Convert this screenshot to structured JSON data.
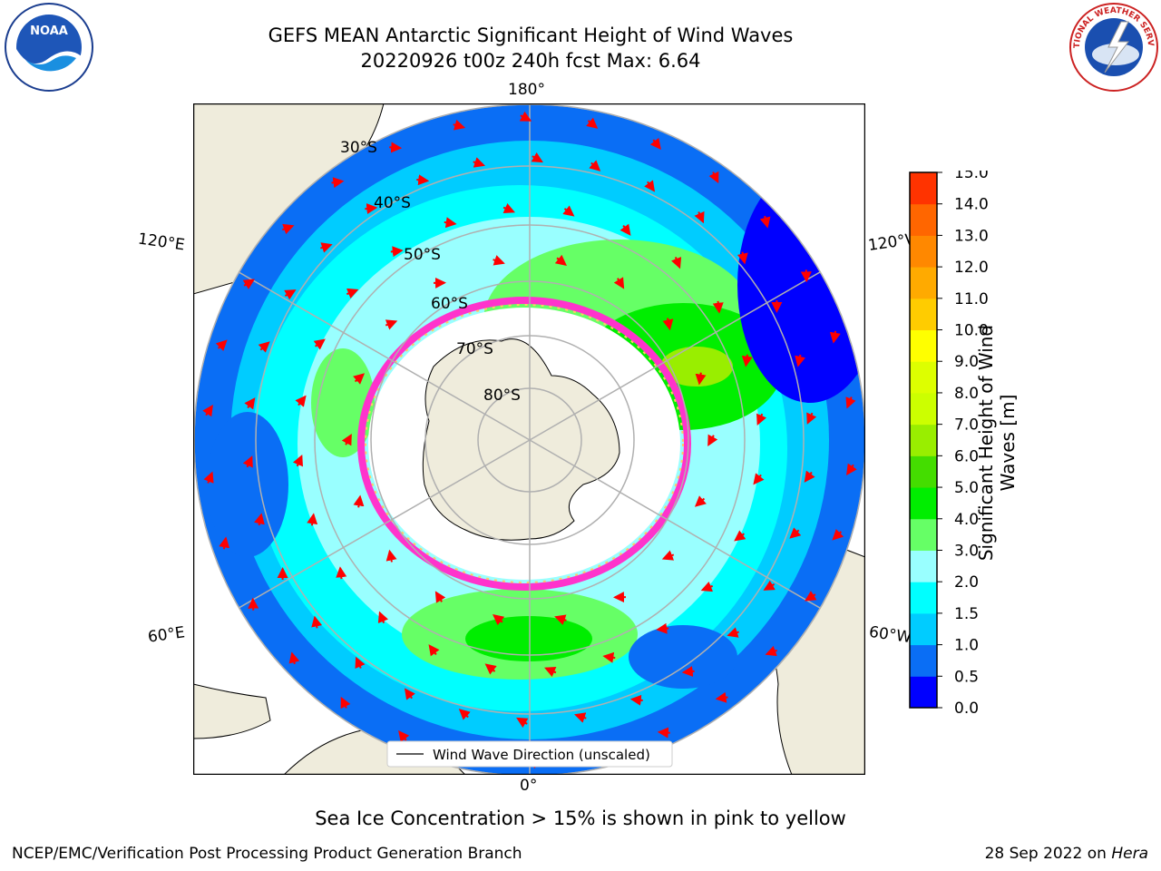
{
  "header": {
    "title_line1": "GEFS MEAN Antarctic Significant Height of Wind Waves",
    "title_line2": "20220926 t00z 240h fcst   Max: 6.64"
  },
  "logos": {
    "left": {
      "icon": "noaa-logo",
      "text": "NOAA"
    },
    "right": {
      "icon": "nws-logo",
      "text": "NATIONAL WEATHER SERVICE"
    }
  },
  "map": {
    "projection": "south-polar-stereographic",
    "lon_labels": {
      "top": "180°",
      "bottom": "0°",
      "upper_left": "120°E",
      "upper_right": "120°W",
      "lower_left": "60°E",
      "lower_right": "60°W"
    },
    "lat_labels": [
      "30°S",
      "40°S",
      "50°S",
      "60°S",
      "70°S",
      "80°S"
    ],
    "legend": "Wind Wave Direction (unscaled)",
    "colors": {
      "land": "#efecdc",
      "ice_edge": "#ff33cc",
      "arrow": "#ff0000",
      "grid": "#b0b0b0"
    }
  },
  "colorbar": {
    "label_line1": "Significant Height of Wind",
    "label_line2": "Waves [m]",
    "ticks": [
      "0.0",
      "0.5",
      "1.0",
      "1.5",
      "2.0",
      "3.0",
      "4.0",
      "5.0",
      "6.0",
      "7.0",
      "8.0",
      "9.0",
      "10.0",
      "11.0",
      "12.0",
      "13.0",
      "14.0",
      "15.0"
    ],
    "colors": [
      "#0000ff",
      "#0a6ef5",
      "#00ccff",
      "#00ffff",
      "#99ffff",
      "#66ff66",
      "#00ee00",
      "#44dd00",
      "#99ee00",
      "#ccff00",
      "#ddff00",
      "#ffff00",
      "#ffcc00",
      "#ffaa00",
      "#ff8800",
      "#ff6600",
      "#ff3300"
    ]
  },
  "footer": {
    "ice_note": "Sea Ice Concentration > 15% is shown in pink to yellow",
    "left": "NCEP/EMC/Verification Post Processing Product Generation Branch",
    "right_prefix": "28 Sep 2022 on ",
    "right_machine": "Hera"
  }
}
